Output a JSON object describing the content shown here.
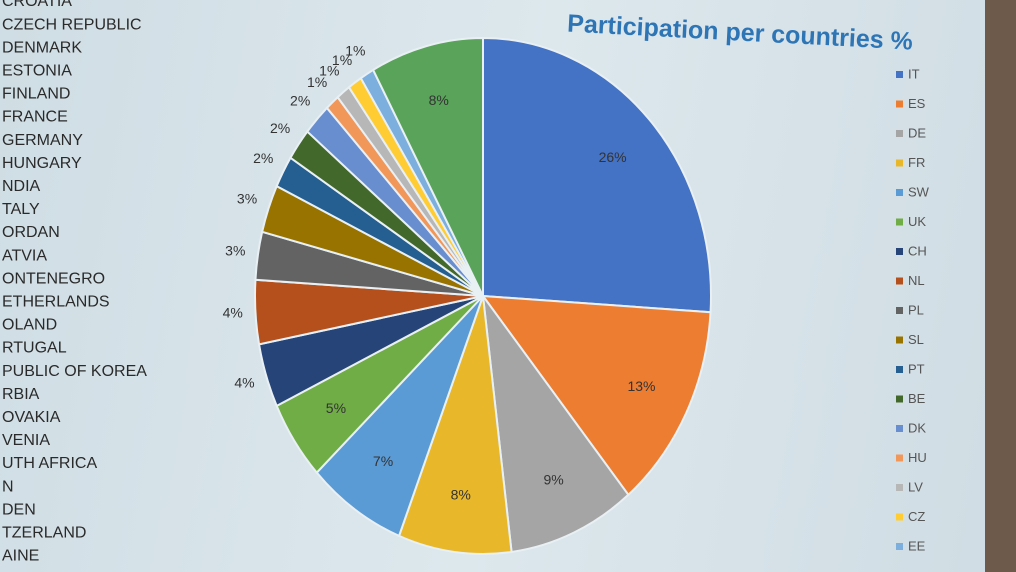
{
  "chart_data": {
    "type": "pie",
    "title": "Participation per countries %",
    "categories": [
      "IT",
      "ES",
      "DE",
      "FR",
      "SW",
      "UK",
      "CH",
      "NL",
      "PL",
      "SL",
      "PT",
      "BE",
      "DK",
      "HU",
      "LV",
      "CZ",
      "EE",
      null
    ],
    "values": [
      26,
      13,
      9,
      8,
      7,
      5,
      4,
      4,
      3,
      3,
      2,
      2,
      2,
      1,
      1,
      1,
      1,
      8
    ],
    "value_labels": [
      "26%",
      "13%",
      "9%",
      "8%",
      "7%",
      "5%",
      "4%",
      "4%",
      "3%",
      "3%",
      "2%",
      "2%",
      "2%",
      "1%",
      "1%",
      "1%",
      "1%",
      "8%"
    ],
    "colors": [
      "#4472c4",
      "#ed7d31",
      "#a5a5a5",
      "#e8b82a",
      "#5b9bd5",
      "#70ad47",
      "#264478",
      "#b5501c",
      "#636363",
      "#997300",
      "#255e91",
      "#43682b",
      "#698ed0",
      "#f1975a",
      "#b7b7b7",
      "#ffcd33",
      "#7cafdd",
      "#5aa35a"
    ],
    "legend": "right"
  },
  "country_list": [
    "CROATIA",
    "CZECH REPUBLIC",
    "DENMARK",
    "ESTONIA",
    "FINLAND",
    "FRANCE",
    "GERMANY",
    "HUNGARY",
    "NDIA",
    "TALY",
    "ORDAN",
    "ATVIA",
    "ONTENEGRO",
    "ETHERLANDS",
    "OLAND",
    "RTUGAL",
    "PUBLIC OF KOREA",
    "RBIA",
    "OVAKIA",
    "VENIA",
    "UTH AFRICA",
    "N",
    "DEN",
    "TZERLAND",
    "AINE"
  ]
}
